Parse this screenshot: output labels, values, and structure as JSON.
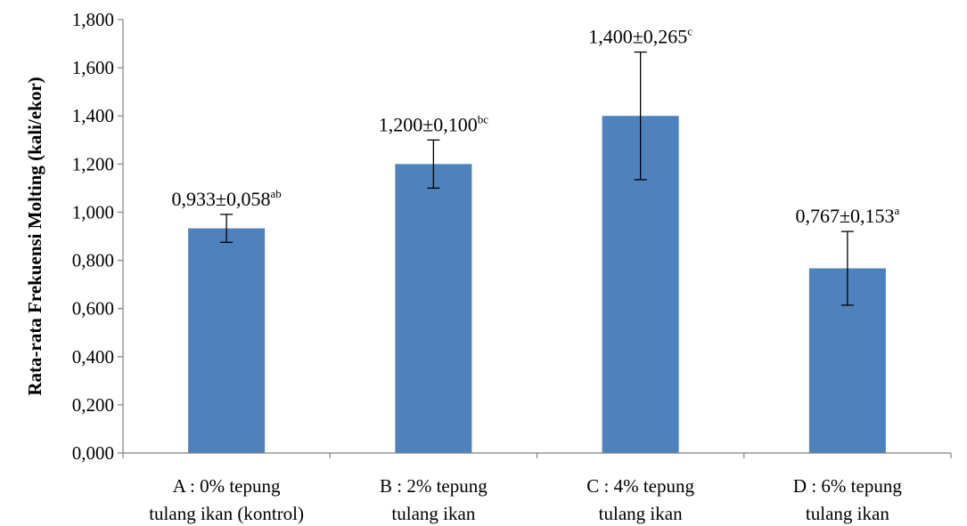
{
  "chart_data": {
    "type": "bar",
    "title": "",
    "xlabel": "",
    "ylabel": "Rata-rata Frekuensi Molting (kali/ekor)",
    "ylim": [
      0,
      1.8
    ],
    "y_ticks": [
      "0,000",
      "0,200",
      "0,400",
      "0,600",
      "0,800",
      "1,000",
      "1,200",
      "1,400",
      "1,600",
      "1,800"
    ],
    "y_tick_values": [
      0,
      0.2,
      0.4,
      0.6,
      0.8,
      1.0,
      1.2,
      1.4,
      1.6,
      1.8
    ],
    "grid": false,
    "bar_color": "#4f81bd",
    "categories": [
      [
        "A : 0% tepung",
        "tulang ikan (kontrol)"
      ],
      [
        "B : 2% tepung",
        "tulang ikan"
      ],
      [
        "C : 4% tepung",
        "tulang ikan"
      ],
      [
        "D : 6% tepung",
        "tulang ikan"
      ]
    ],
    "values": [
      0.933,
      1.2,
      1.4,
      0.767
    ],
    "errors": [
      0.058,
      0.1,
      0.265,
      0.153
    ],
    "data_labels": [
      "0,933±0,058",
      "1,200±0,100",
      "1,400±0,265",
      "0,767±0,153"
    ],
    "superscripts": [
      "ab",
      "bc",
      "c",
      "a"
    ]
  }
}
